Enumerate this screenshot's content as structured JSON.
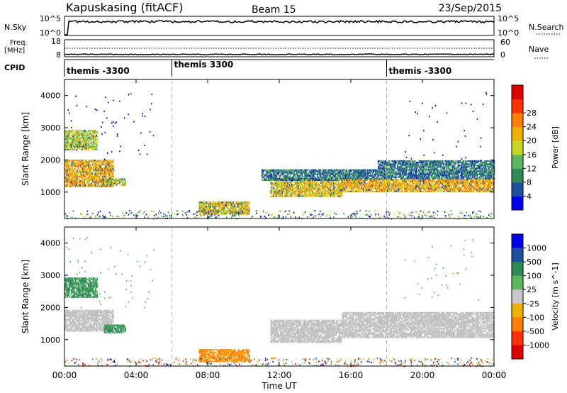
{
  "header": {
    "station": "Kapuskasing (fitACF)",
    "beam": "Beam 15",
    "date": "23/Sep/2015"
  },
  "strips": {
    "nsky_label": "N.Sky",
    "nsearch_label": "N.Search",
    "freq_label_1": "Freq.",
    "freq_label_2": "[MHz]",
    "nave_label": "Nave",
    "cpid_label": "CPID",
    "nsky_ticks": [
      "10^5",
      "10^0"
    ],
    "nsearch_ticks": [
      "10^5",
      "10^0"
    ],
    "freq_ticks": [
      "18",
      "8"
    ],
    "nave_ticks": [
      "60",
      "0"
    ],
    "cpid_segments": [
      {
        "label": "themis -3300",
        "start_hour": 0
      },
      {
        "label": "themis 3300",
        "start_hour": 6
      },
      {
        "label": "themis -3300",
        "start_hour": 18
      }
    ]
  },
  "colors": {
    "power_scale": [
      "#0000ee",
      "#1f4fa0",
      "#2e8b57",
      "#5cb85c",
      "#c8d820",
      "#f0b000",
      "#ff7f00",
      "#ff3000",
      "#e00000"
    ],
    "velocity_scale": [
      "#0000ee",
      "#1f4fa0",
      "#2e8b57",
      "#5cb85c",
      "#c8c8c8",
      "#f0b000",
      "#ff7f00",
      "#ff3000",
      "#e00000"
    ],
    "ground_scatter": "#c0c0c0"
  },
  "chart_data": [
    {
      "type": "heatmap",
      "title": "Kapuskasing (fitACF) Beam 15",
      "ylabel": "Slant Range [km]",
      "xlabel": "Time UT",
      "xlim": [
        0,
        24
      ],
      "ylim": [
        180,
        4500
      ],
      "xticks": [
        "00:00",
        "04:00",
        "08:00",
        "12:00",
        "16:00",
        "20:00",
        "00:00"
      ],
      "yticks": [
        1000,
        2000,
        3000,
        4000
      ],
      "colorbar": {
        "label": "Power [dB]",
        "ticks": [
          4,
          8,
          12,
          16,
          20,
          24,
          28
        ]
      },
      "regions": [
        {
          "t": [
            0.0,
            2.7
          ],
          "r": [
            1150,
            2000
          ],
          "value": 20
        },
        {
          "t": [
            0.0,
            1.8
          ],
          "r": [
            2300,
            2900
          ],
          "value": 16
        },
        {
          "t": [
            2.2,
            3.4
          ],
          "r": [
            1200,
            1400
          ],
          "value": 16
        },
        {
          "t": [
            7.5,
            10.3
          ],
          "r": [
            300,
            700
          ],
          "value": 18
        },
        {
          "t": [
            11.5,
            15.5
          ],
          "r": [
            850,
            1400
          ],
          "value": 18
        },
        {
          "t": [
            11.0,
            17.5
          ],
          "r": [
            1350,
            1700
          ],
          "value": 8
        },
        {
          "t": [
            15.5,
            24.0
          ],
          "r": [
            1000,
            1400
          ],
          "value": 20
        },
        {
          "t": [
            17.5,
            24.0
          ],
          "r": [
            1400,
            1950
          ],
          "value": 8
        }
      ]
    },
    {
      "type": "heatmap",
      "ylabel": "Slant Range [km]",
      "xlabel": "Time UT",
      "xlim": [
        0,
        24
      ],
      "ylim": [
        180,
        4500
      ],
      "xticks": [
        "00:00",
        "04:00",
        "08:00",
        "12:00",
        "16:00",
        "20:00",
        "00:00"
      ],
      "yticks": [
        1000,
        2000,
        3000,
        4000
      ],
      "colorbar": {
        "label": "Velocity [m s^-1]",
        "ticks": [
          1000,
          500,
          100,
          25,
          -25,
          -100,
          -500,
          -1000
        ]
      },
      "regions": [
        {
          "t": [
            0.0,
            2.7
          ],
          "r": [
            1250,
            1900
          ],
          "value": 0,
          "ground_scatter": true
        },
        {
          "t": [
            0.0,
            1.8
          ],
          "r": [
            2300,
            2900
          ],
          "value": 100
        },
        {
          "t": [
            2.2,
            3.4
          ],
          "r": [
            1200,
            1450
          ],
          "value": 100
        },
        {
          "t": [
            7.5,
            10.3
          ],
          "r": [
            300,
            700
          ],
          "value": -100
        },
        {
          "t": [
            11.5,
            15.5
          ],
          "r": [
            900,
            1600
          ],
          "value": 0,
          "ground_scatter": true
        },
        {
          "t": [
            15.5,
            24.0
          ],
          "r": [
            1050,
            1850
          ],
          "value": 0,
          "ground_scatter": true
        }
      ]
    }
  ]
}
